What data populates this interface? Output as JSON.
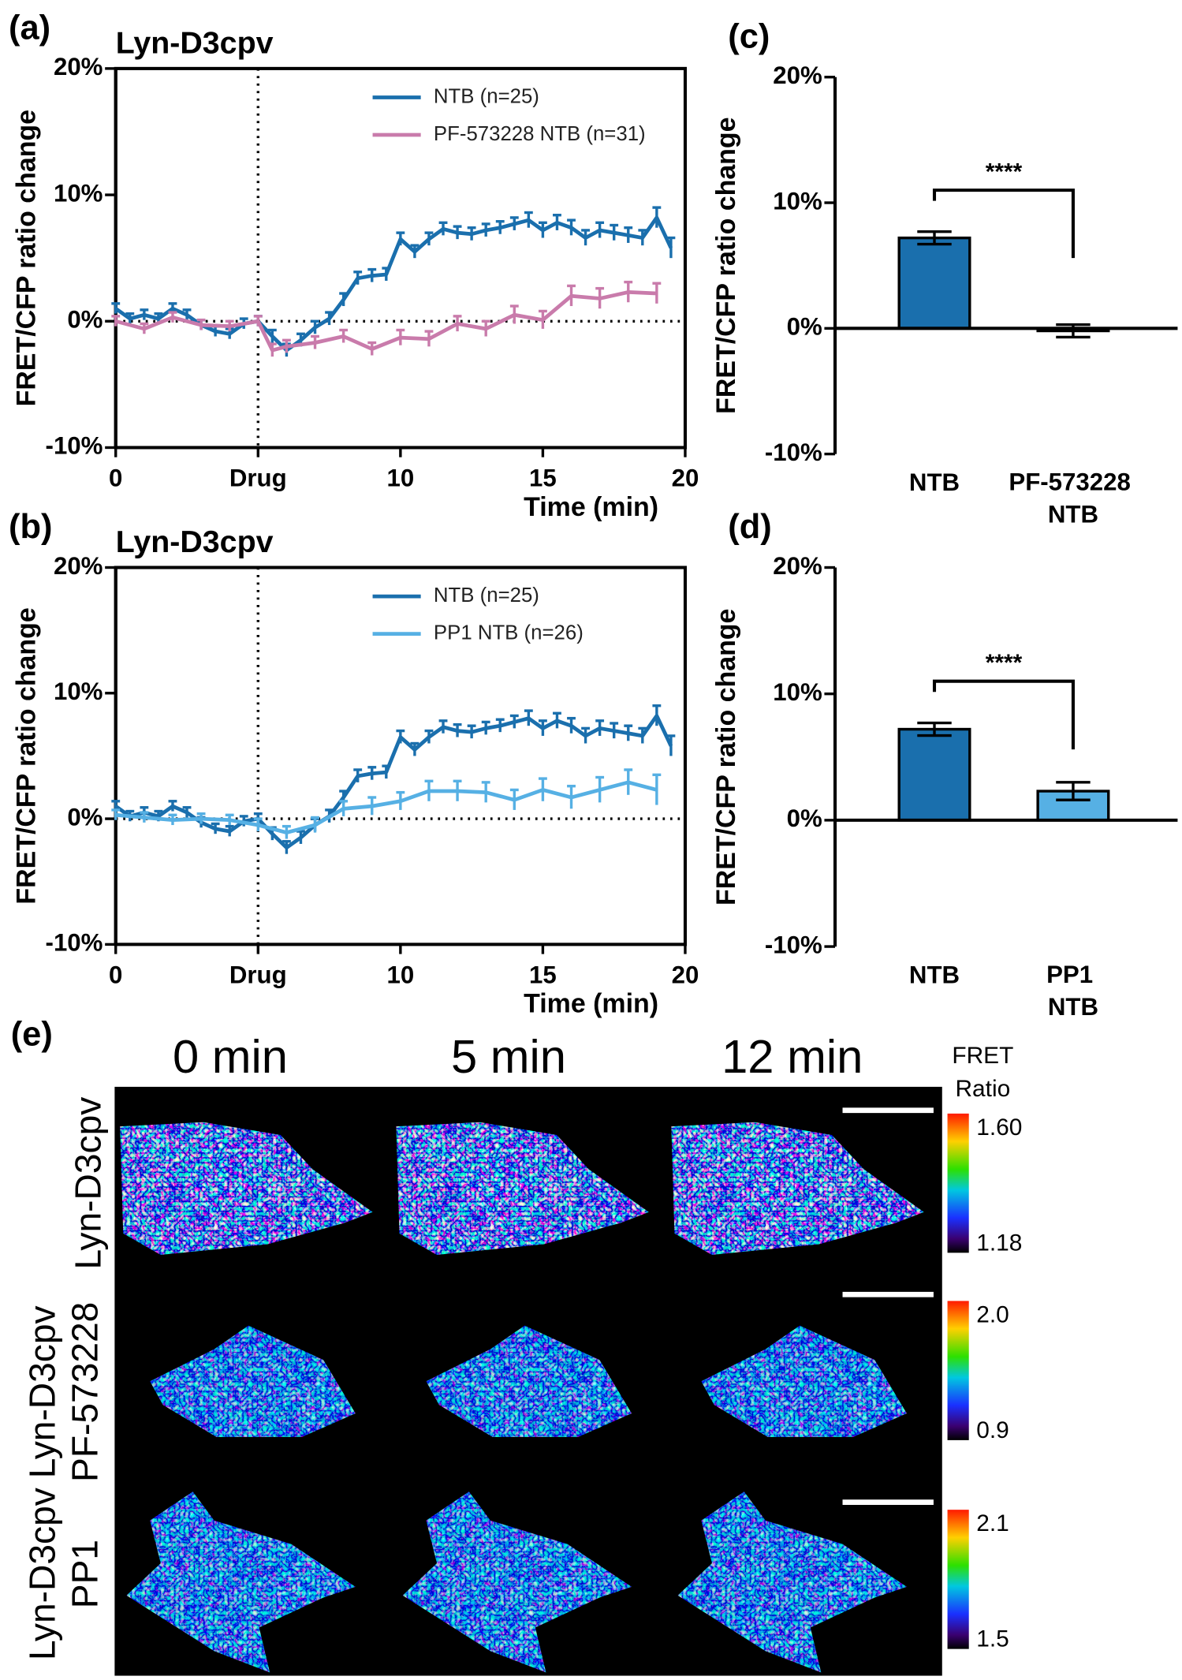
{
  "chart_data": [
    {
      "type": "line",
      "panel": "(a)",
      "title": "Lyn-D3cpv",
      "ylabel": "FRET/CFP ratio change",
      "xlabel": "Time (min)",
      "xlim": [
        0,
        20
      ],
      "xticks": [
        0,
        {
          "value": 5,
          "label": "Drug"
        },
        10,
        15,
        20
      ],
      "ylim": [
        -10,
        20
      ],
      "yticks": [
        {
          "value": -10,
          "label": "-10%"
        },
        {
          "value": 0,
          "label": "0%"
        },
        {
          "value": 10,
          "label": "10%"
        },
        {
          "value": 20,
          "label": "20%"
        }
      ],
      "legend": "upper right",
      "series": [
        {
          "name": "NTB (n=25)",
          "color": "#1a6fad",
          "x": [
            0,
            0.5,
            1,
            1.5,
            2,
            2.5,
            3,
            3.5,
            4,
            4.5,
            5,
            5.5,
            6,
            6.5,
            7,
            7.5,
            8,
            8.5,
            9,
            9.5,
            10,
            10.5,
            11,
            11.5,
            12,
            12.5,
            13,
            13.5,
            14,
            14.5,
            15,
            15.5,
            16,
            16.5,
            17,
            17.5,
            18,
            18.5,
            19,
            19.5
          ],
          "values": [
            1.0,
            0.2,
            0.5,
            0.2,
            1.0,
            0.5,
            -0.3,
            -0.8,
            -1.0,
            -0.2,
            0.0,
            -1.2,
            -2.3,
            -1.5,
            -0.5,
            0.2,
            1.7,
            3.4,
            3.6,
            3.7,
            6.5,
            5.5,
            6.5,
            7.3,
            7.0,
            6.9,
            7.2,
            7.4,
            7.7,
            8.0,
            7.2,
            7.8,
            7.4,
            6.6,
            7.2,
            7.0,
            6.8,
            6.6,
            8.2,
            5.8
          ],
          "errors": [
            0.4,
            0.4,
            0.4,
            0.4,
            0.4,
            0.4,
            0.4,
            0.4,
            0.4,
            0.4,
            0.4,
            0.5,
            0.5,
            0.5,
            0.5,
            0.5,
            0.5,
            0.5,
            0.5,
            0.5,
            0.5,
            0.5,
            0.5,
            0.5,
            0.5,
            0.5,
            0.5,
            0.5,
            0.5,
            0.6,
            0.6,
            0.6,
            0.6,
            0.6,
            0.6,
            0.6,
            0.6,
            0.6,
            0.8,
            0.8
          ]
        },
        {
          "name": "PF-573228 NTB (n=31)",
          "color": "#c97bab",
          "x": [
            0,
            1,
            2,
            3,
            4,
            5,
            5.5,
            6,
            7,
            8,
            9,
            10,
            11,
            12,
            13,
            14,
            15,
            16,
            17,
            18,
            19
          ],
          "values": [
            0.0,
            -0.6,
            0.3,
            -0.3,
            -0.4,
            0.0,
            -2.3,
            -2.0,
            -1.7,
            -1.2,
            -2.2,
            -1.3,
            -1.4,
            -0.2,
            -0.6,
            0.5,
            0.1,
            2.0,
            1.8,
            2.3,
            2.2
          ],
          "errors": [
            0.4,
            0.4,
            0.4,
            0.4,
            0.4,
            0.4,
            0.5,
            0.5,
            0.5,
            0.5,
            0.5,
            0.6,
            0.6,
            0.6,
            0.6,
            0.7,
            0.7,
            0.8,
            0.8,
            0.8,
            0.8
          ]
        }
      ]
    },
    {
      "type": "line",
      "panel": "(b)",
      "title": "Lyn-D3cpv",
      "ylabel": "FRET/CFP ratio change",
      "xlabel": "Time (min)",
      "xlim": [
        0,
        20
      ],
      "xticks": [
        0,
        {
          "value": 5,
          "label": "Drug"
        },
        10,
        15,
        20
      ],
      "ylim": [
        -10,
        20
      ],
      "yticks": [
        {
          "value": -10,
          "label": "-10%"
        },
        {
          "value": 0,
          "label": "0%"
        },
        {
          "value": 10,
          "label": "10%"
        },
        {
          "value": 20,
          "label": "20%"
        }
      ],
      "legend": "upper right",
      "series": [
        {
          "name": "NTB (n=25)",
          "color": "#1a6fad",
          "x": [
            0,
            0.5,
            1,
            1.5,
            2,
            2.5,
            3,
            3.5,
            4,
            4.5,
            5,
            5.5,
            6,
            6.5,
            7,
            7.5,
            8,
            8.5,
            9,
            9.5,
            10,
            10.5,
            11,
            11.5,
            12,
            12.5,
            13,
            13.5,
            14,
            14.5,
            15,
            15.5,
            16,
            16.5,
            17,
            17.5,
            18,
            18.5,
            19,
            19.5
          ],
          "values": [
            1.0,
            0.2,
            0.5,
            0.2,
            1.0,
            0.5,
            -0.3,
            -0.8,
            -1.0,
            -0.2,
            0.0,
            -1.2,
            -2.3,
            -1.5,
            -0.5,
            0.2,
            1.7,
            3.4,
            3.6,
            3.7,
            6.5,
            5.5,
            6.5,
            7.3,
            7.0,
            6.9,
            7.2,
            7.4,
            7.7,
            8.0,
            7.2,
            7.8,
            7.4,
            6.6,
            7.2,
            7.0,
            6.8,
            6.6,
            8.2,
            5.8
          ],
          "errors": [
            0.4,
            0.4,
            0.4,
            0.4,
            0.4,
            0.4,
            0.4,
            0.4,
            0.4,
            0.4,
            0.4,
            0.5,
            0.5,
            0.5,
            0.5,
            0.5,
            0.5,
            0.5,
            0.5,
            0.5,
            0.5,
            0.5,
            0.5,
            0.5,
            0.5,
            0.5,
            0.5,
            0.5,
            0.5,
            0.6,
            0.6,
            0.6,
            0.6,
            0.6,
            0.6,
            0.6,
            0.6,
            0.6,
            0.8,
            0.8
          ]
        },
        {
          "name": "PP1 NTB (n=26)",
          "color": "#56b0e4",
          "x": [
            0,
            1,
            2,
            3,
            4,
            5,
            6,
            7,
            8,
            9,
            10,
            11,
            12,
            13,
            14,
            15,
            16,
            17,
            18,
            19
          ],
          "values": [
            0.3,
            0.1,
            -0.1,
            0.0,
            -0.1,
            -0.5,
            -1.1,
            -0.5,
            0.8,
            1.0,
            1.4,
            2.2,
            2.2,
            2.1,
            1.5,
            2.3,
            1.7,
            2.3,
            2.9,
            2.3
          ],
          "errors": [
            0.4,
            0.4,
            0.4,
            0.4,
            0.4,
            0.5,
            0.5,
            0.6,
            0.6,
            0.7,
            0.7,
            0.8,
            0.8,
            0.8,
            0.8,
            0.9,
            0.9,
            1.0,
            1.0,
            1.2
          ]
        }
      ]
    },
    {
      "type": "bar",
      "panel": "(c)",
      "ylabel": "FRET/CFP ratio change",
      "categories": [
        "NTB",
        "PF-573228 NTB"
      ],
      "values": [
        7.2,
        -0.2
      ],
      "errors": [
        0.5,
        0.5
      ],
      "colors": [
        "#1a6fad",
        "#1a6fad"
      ],
      "ylim": [
        -10,
        20
      ],
      "yticks": [
        {
          "value": -10,
          "label": "-10%"
        },
        {
          "value": 0,
          "label": "0%"
        },
        {
          "value": 10,
          "label": "10%"
        },
        {
          "value": 20,
          "label": "20%"
        }
      ],
      "annotation": "****"
    },
    {
      "type": "bar",
      "panel": "(d)",
      "ylabel": "FRET/CFP ratio change",
      "categories": [
        "NTB",
        "PP1 NTB"
      ],
      "values": [
        7.2,
        2.3
      ],
      "errors": [
        0.5,
        0.7
      ],
      "colors": [
        "#1a6fad",
        "#56b0e4"
      ],
      "ylim": [
        -10,
        20
      ],
      "yticks": [
        {
          "value": -10,
          "label": "-10%"
        },
        {
          "value": 0,
          "label": "0%"
        },
        {
          "value": 10,
          "label": "10%"
        },
        {
          "value": 20,
          "label": "20%"
        }
      ],
      "annotation": "****"
    }
  ],
  "panel_e": {
    "panel": "(e)",
    "columns": [
      "0 min",
      "5 min",
      "12 min"
    ],
    "rows": [
      [
        "Lyn-D3cpv"
      ],
      [
        "Lyn-D3cpv",
        "PF-573228"
      ],
      [
        "Lyn-D3cpv",
        "PP1"
      ]
    ],
    "colorbar_title": [
      "FRET",
      "Ratio"
    ],
    "colorbars": [
      [
        "1.60",
        "1.18"
      ],
      [
        "2.0",
        "0.9"
      ],
      [
        "2.1",
        "1.5"
      ]
    ]
  }
}
